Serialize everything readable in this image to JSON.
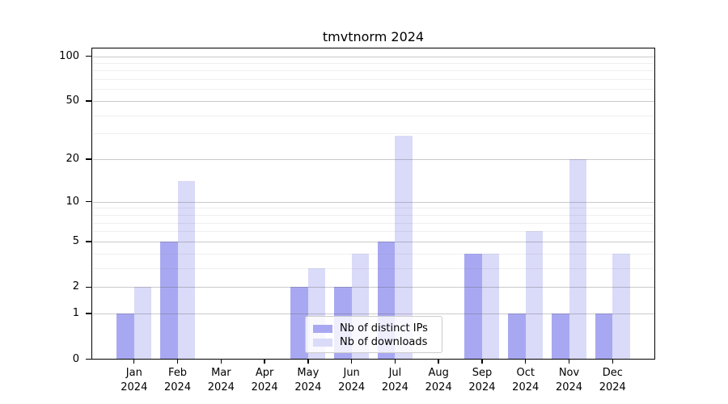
{
  "chart_data": {
    "type": "bar",
    "title": "tmvtnorm 2024",
    "categories": [
      "Jan",
      "Feb",
      "Mar",
      "Apr",
      "May",
      "Jun",
      "Jul",
      "Aug",
      "Sep",
      "Oct",
      "Nov",
      "Dec"
    ],
    "category_year": "2024",
    "series": [
      {
        "name": "Nb of distinct IPs",
        "color": "#a8a8f2",
        "values": [
          1,
          5,
          0,
          0,
          2,
          2,
          5,
          0,
          4,
          1,
          1,
          1
        ]
      },
      {
        "name": "Nb of downloads",
        "color": "#dadaf9",
        "values": [
          2,
          14,
          0,
          0,
          3,
          4,
          29,
          0,
          4,
          6,
          20,
          4
        ]
      }
    ],
    "y_axis": {
      "scale": "log1p",
      "ticks": [
        0,
        1,
        2,
        5,
        10,
        20,
        50,
        100
      ],
      "minor_gridlines": [
        3,
        4,
        6,
        7,
        8,
        9,
        30,
        40,
        60,
        70,
        80,
        90
      ],
      "ylim": [
        0,
        100
      ]
    },
    "legend": {
      "position": "lower-center-inside",
      "entries": [
        "Nb of distinct IPs",
        "Nb of downloads"
      ]
    },
    "grid": "horizontal"
  }
}
